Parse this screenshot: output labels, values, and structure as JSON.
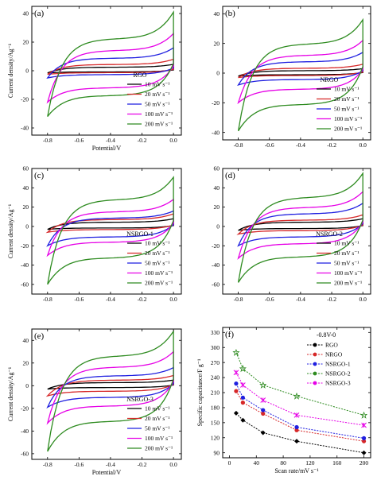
{
  "chart_data": [
    {
      "type": "line",
      "panel": "(a)",
      "xlabel": "Potential/V",
      "ylabel": "Current density/Ag⁻¹",
      "xlim": [
        -0.9,
        0.05
      ],
      "ylim": [
        -45,
        45
      ],
      "xticks": [
        "-0.8",
        "-0.6",
        "-0.4",
        "-0.2",
        "0.0"
      ],
      "yticks": [
        "40",
        "20",
        "0",
        "-20",
        "-40"
      ],
      "legend_title": "RGO",
      "legend_position": "bottom-right",
      "series": [
        {
          "name": "10 mV s⁻¹",
          "color": "#000000",
          "current_at_0V": 4.5,
          "current_at_-0.8V": -1.5
        },
        {
          "name": "20 mV s⁻¹",
          "color": "#d62728",
          "current_at_0V": 8,
          "current_at_-0.8V": -2.5
        },
        {
          "name": "50 mV s⁻¹",
          "color": "#1f1fe0",
          "current_at_0V": 16,
          "current_at_-0.8V": -5
        },
        {
          "name": "100 mV s⁻¹",
          "color": "#e600e6",
          "current_at_0V": 26,
          "current_at_-0.8V": -22
        },
        {
          "name": "200 mV s⁻¹",
          "color": "#2e8b20",
          "current_at_0V": 41,
          "current_at_-0.8V": -32
        }
      ]
    },
    {
      "type": "line",
      "panel": "(b)",
      "xlabel": "",
      "ylabel": "",
      "xlim": [
        -0.9,
        0.05
      ],
      "ylim": [
        -45,
        45
      ],
      "xticks": [
        "-0.8",
        "-0.6",
        "-0.4",
        "-0.2",
        "0.0"
      ],
      "yticks": [
        "40",
        "20",
        "0",
        "-20",
        "-40"
      ],
      "legend_title": "NRGO",
      "legend_position": "bottom-right",
      "series": [
        {
          "name": "10 mV s⁻¹",
          "color": "#000000",
          "current_at_0V": 3,
          "current_at_-0.8V": -2
        },
        {
          "name": "20 mV s⁻¹",
          "color": "#d62728",
          "current_at_0V": 6,
          "current_at_-0.8V": -3
        },
        {
          "name": "50 mV s⁻¹",
          "color": "#1f1fe0",
          "current_at_0V": 14,
          "current_at_-0.8V": -8
        },
        {
          "name": "100 mV s⁻¹",
          "color": "#e600e6",
          "current_at_0V": 22,
          "current_at_-0.8V": -20
        },
        {
          "name": "200 mV s⁻¹",
          "color": "#2e8b20",
          "current_at_0V": 36,
          "current_at_-0.8V": -39
        }
      ]
    },
    {
      "type": "line",
      "panel": "(c)",
      "xlabel": "",
      "ylabel": "Current density/Ag⁻¹",
      "xlim": [
        -0.9,
        0.05
      ],
      "ylim": [
        -70,
        60
      ],
      "xticks": [
        "-0.8",
        "-0.6",
        "-0.4",
        "-0.2",
        "0.0"
      ],
      "yticks": [
        "60",
        "40",
        "20",
        "0",
        "-20",
        "-40",
        "-60"
      ],
      "legend_title": "NSRGO-1",
      "legend_position": "bottom-right",
      "series": [
        {
          "name": "10 mV s⁻¹",
          "color": "#000000",
          "current_at_0V": 8,
          "current_at_-0.8V": -3
        },
        {
          "name": "20 mV s⁻¹",
          "color": "#d62728",
          "current_at_0V": 13,
          "current_at_-0.8V": -6
        },
        {
          "name": "50 mV s⁻¹",
          "color": "#1f1fe0",
          "current_at_0V": 16,
          "current_at_-0.8V": -20
        },
        {
          "name": "100 mV s⁻¹",
          "color": "#e600e6",
          "current_at_0V": 28,
          "current_at_-0.8V": -30
        },
        {
          "name": "200 mV s⁻¹",
          "color": "#2e8b20",
          "current_at_0V": 51,
          "current_at_-0.8V": -60
        }
      ]
    },
    {
      "type": "line",
      "panel": "(d)",
      "xlabel": "",
      "ylabel": "",
      "xlim": [
        -0.9,
        0.05
      ],
      "ylim": [
        -70,
        60
      ],
      "xticks": [
        "-0.8",
        "-0.6",
        "-0.4",
        "-0.2",
        "0.0"
      ],
      "yticks": [
        "60",
        "40",
        "20",
        "0",
        "-20",
        "-40",
        "-60"
      ],
      "legend_title": "NSRGO-2",
      "legend_position": "bottom-right",
      "series": [
        {
          "name": "10 mV s⁻¹",
          "color": "#000000",
          "current_at_0V": 8,
          "current_at_-0.8V": -4
        },
        {
          "name": "20 mV s⁻¹",
          "color": "#d62728",
          "current_at_0V": 12,
          "current_at_-0.8V": -8
        },
        {
          "name": "50 mV s⁻¹",
          "color": "#1f1fe0",
          "current_at_0V": 24,
          "current_at_-0.8V": -20
        },
        {
          "name": "100 mV s⁻¹",
          "color": "#e600e6",
          "current_at_0V": 36,
          "current_at_-0.8V": -33
        },
        {
          "name": "200 mV s⁻¹",
          "color": "#2e8b20",
          "current_at_0V": 55,
          "current_at_-0.8V": -58
        }
      ]
    },
    {
      "type": "line",
      "panel": "(e)",
      "xlabel": "Potential/V",
      "ylabel": "Current density/Ag⁻¹",
      "xlim": [
        -0.9,
        0.05
      ],
      "ylim": [
        -65,
        50
      ],
      "xticks": [
        "-0.8",
        "-0.6",
        "-0.4",
        "-0.2",
        "0.0"
      ],
      "yticks": [
        "40",
        "20",
        "0",
        "-20",
        "-40",
        "-60"
      ],
      "legend_title": "NSRGO-3",
      "legend_position": "bottom-right",
      "series": [
        {
          "name": "10 mV s⁻¹",
          "color": "#000000",
          "current_at_0V": 5,
          "current_at_-0.8V": -3
        },
        {
          "name": "20 mV s⁻¹",
          "color": "#d62728",
          "current_at_0V": 9,
          "current_at_-0.8V": -9
        },
        {
          "name": "50 mV s⁻¹",
          "color": "#1f1fe0",
          "current_at_0V": 16,
          "current_at_-0.8V": -19
        },
        {
          "name": "100 mV s⁻¹",
          "color": "#e600e6",
          "current_at_0V": 30,
          "current_at_-0.8V": -33
        },
        {
          "name": "200 mV s⁻¹",
          "color": "#2e8b20",
          "current_at_0V": 48,
          "current_at_-0.8V": -58
        }
      ]
    },
    {
      "type": "line",
      "panel": "(f)",
      "xlabel": "Scan rate/mV s⁻¹",
      "ylabel": "Specific capacitance/F g⁻¹",
      "annotation": "-0.8V-0",
      "xlim": [
        -10,
        210
      ],
      "ylim": [
        80,
        340
      ],
      "xticks": [
        "0",
        "40",
        "80",
        "120",
        "160",
        "200"
      ],
      "yticks": [
        "90",
        "120",
        "150",
        "180",
        "210",
        "240",
        "270",
        "300",
        "330"
      ],
      "legend_position": "top-right",
      "x": [
        10,
        20,
        50,
        100,
        200
      ],
      "series": [
        {
          "name": "RGO",
          "color": "#000000",
          "marker": "diamond",
          "values": [
            169,
            155,
            130,
            113,
            90
          ]
        },
        {
          "name": "NRGO",
          "color": "#d62728",
          "marker": "circle",
          "values": [
            213,
            190,
            168,
            135,
            113
          ]
        },
        {
          "name": "NSRGO-1",
          "color": "#1f1fe0",
          "marker": "circle",
          "values": [
            228,
            200,
            175,
            141,
            119
          ]
        },
        {
          "name": "NSRGO-2",
          "color": "#2e8b20",
          "marker": "star",
          "values": [
            290,
            258,
            225,
            203,
            165
          ]
        },
        {
          "name": "NSRGO-3",
          "color": "#e600e6",
          "marker": "cross",
          "values": [
            250,
            225,
            195,
            165,
            145
          ]
        }
      ]
    }
  ]
}
